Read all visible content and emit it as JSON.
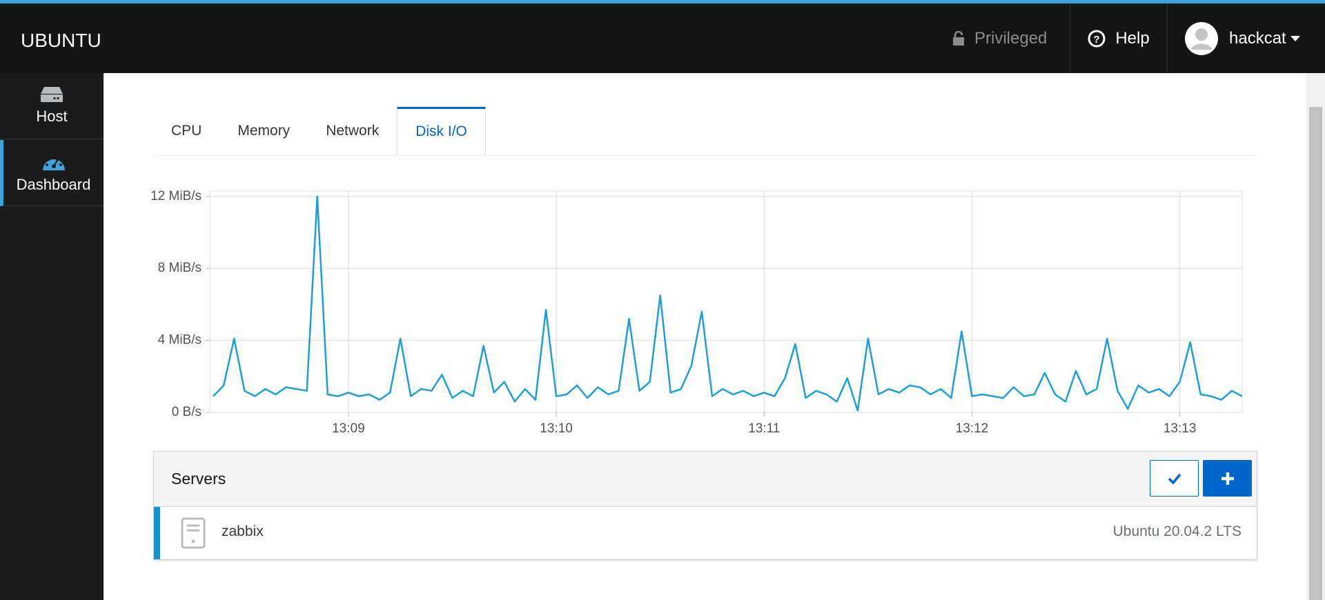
{
  "header": {
    "brand": "UBUNTU",
    "privileged": "Privileged",
    "help": "Help",
    "user": "hackcat"
  },
  "sidebar": {
    "items": [
      "Host",
      "Dashboard"
    ]
  },
  "tabs": [
    "CPU",
    "Memory",
    "Network",
    "Disk I/O"
  ],
  "chart_data": {
    "type": "line",
    "color": "#1a9fdc",
    "grid": true,
    "x": [
      8.35,
      8.4,
      8.45,
      8.5,
      8.55,
      8.6,
      8.65,
      8.7,
      8.75,
      8.8,
      8.85,
      8.9,
      8.95,
      9,
      9.05,
      9.1,
      9.15,
      9.2,
      9.25,
      9.3,
      9.35,
      9.4,
      9.45,
      9.5,
      9.55,
      9.6,
      9.65,
      9.7,
      9.75,
      9.8,
      9.85,
      9.9,
      9.95,
      10,
      10.05,
      10.1,
      10.15,
      10.2,
      10.25,
      10.3,
      10.35,
      10.4,
      10.45,
      10.5,
      10.55,
      10.6,
      10.65,
      10.7,
      10.75,
      10.8,
      10.85,
      10.9,
      10.95,
      11,
      11.05,
      11.1,
      11.15,
      11.2,
      11.25,
      11.3,
      11.35,
      11.4,
      11.45,
      11.5,
      11.55,
      11.6,
      11.65,
      11.7,
      11.75,
      11.8,
      11.85,
      11.9,
      11.95,
      12,
      12.05,
      12.1,
      12.15,
      12.2,
      12.25,
      12.3,
      12.35,
      12.4,
      12.45,
      12.5,
      12.55,
      12.6,
      12.65,
      12.7,
      12.75,
      12.8,
      12.85,
      12.9,
      12.95,
      13,
      13.05,
      13.1,
      13.15,
      13.2,
      13.25,
      13.3
    ],
    "values": [
      0.9,
      1.5,
      4.1,
      1.2,
      0.9,
      1.3,
      1.0,
      1.4,
      1.3,
      1.2,
      12.0,
      1.0,
      0.9,
      1.1,
      0.9,
      1.0,
      0.7,
      1.1,
      4.1,
      0.9,
      1.3,
      1.2,
      2.1,
      0.8,
      1.2,
      0.9,
      3.7,
      1.1,
      1.7,
      0.6,
      1.3,
      0.7,
      5.7,
      0.9,
      1.0,
      1.5,
      0.8,
      1.4,
      1.0,
      1.2,
      5.2,
      1.2,
      1.7,
      6.5,
      1.1,
      1.3,
      2.6,
      5.6,
      0.9,
      1.3,
      1.0,
      1.2,
      0.9,
      1.1,
      0.9,
      1.9,
      3.8,
      0.8,
      1.2,
      1.0,
      0.6,
      1.9,
      0.1,
      4.1,
      1.0,
      1.3,
      1.1,
      1.5,
      1.4,
      1.0,
      1.3,
      0.8,
      4.5,
      0.9,
      1.0,
      0.9,
      0.8,
      1.4,
      0.9,
      1.0,
      2.2,
      1.0,
      0.6,
      2.3,
      1.0,
      1.3,
      4.1,
      1.2,
      0.2,
      1.5,
      1.1,
      1.3,
      0.9,
      1.7,
      3.9,
      1.0,
      0.9,
      0.7,
      1.2,
      0.9
    ],
    "xlim": [
      8.333,
      13.3
    ],
    "xticks": [
      {
        "value": 9,
        "label": "13:09"
      },
      {
        "value": 10,
        "label": "13:10"
      },
      {
        "value": 11,
        "label": "13:11"
      },
      {
        "value": 12,
        "label": "13:12"
      },
      {
        "value": 13,
        "label": "13:13"
      }
    ],
    "ylim": [
      0,
      12.3
    ],
    "yticks": [
      {
        "value": 0,
        "label": "0 B/s"
      },
      {
        "value": 4,
        "label": "4 MiB/s"
      },
      {
        "value": 8,
        "label": "8 MiB/s"
      },
      {
        "value": 12,
        "label": "12 MiB/s"
      }
    ]
  },
  "servers": {
    "title": "Servers",
    "rows": [
      {
        "name": "zabbix",
        "os": "Ubuntu 20.04.2 LTS"
      }
    ]
  }
}
